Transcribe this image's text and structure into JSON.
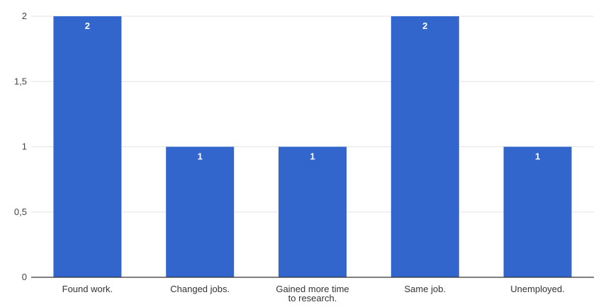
{
  "chart_data": {
    "type": "bar",
    "categories": [
      [
        "Found work."
      ],
      [
        "Changed jobs."
      ],
      [
        "Gained more time",
        "to research."
      ],
      [
        "Same job."
      ],
      [
        "Unemployed."
      ]
    ],
    "values": [
      2,
      1,
      1,
      2,
      1
    ],
    "data_labels": [
      "2",
      "1",
      "1",
      "2",
      "1"
    ],
    "yticks": [
      0,
      0.5,
      1,
      1.5,
      2
    ],
    "ytick_labels": [
      "0",
      "0,5",
      "1",
      "1,5",
      "2"
    ],
    "ylim": [
      0,
      2
    ],
    "title": "",
    "xlabel": "",
    "ylabel": "",
    "grid": true,
    "legend": "none",
    "bar_color": "#3366cc"
  }
}
